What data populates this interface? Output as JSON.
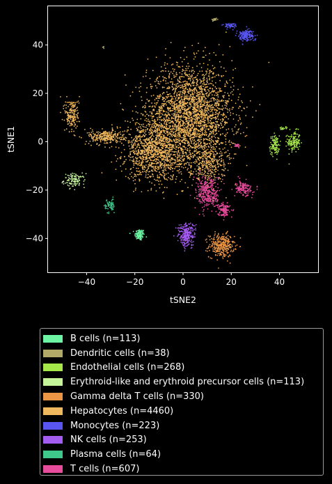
{
  "chart_data": {
    "type": "scatter",
    "xlabel": "tSNE2",
    "ylabel": "tSNE1",
    "xlim": [
      -56,
      56
    ],
    "ylim": [
      -54,
      56
    ],
    "xticks": [
      -40,
      -20,
      0,
      20,
      40
    ],
    "yticks": [
      -40,
      -20,
      0,
      20,
      40
    ],
    "xtick_labels": [
      "−40",
      "−20",
      "0",
      "20",
      "40"
    ],
    "ytick_labels": [
      "−40",
      "−20",
      "0",
      "20",
      "40"
    ],
    "grid": false,
    "legend_position": "below",
    "series": [
      {
        "name": "B cells (n=113)",
        "color": "#6ef5a3",
        "clusters": [
          {
            "cx": -18,
            "cy": -38.5,
            "sx": 1.0,
            "sy": 1.2,
            "n": 113
          }
        ]
      },
      {
        "name": "Dendritic cells (n=38)",
        "color": "#b2a868",
        "clusters": [
          {
            "cx": 13,
            "cy": 50.5,
            "sx": 0.6,
            "sy": 0.4,
            "n": 20
          },
          {
            "cx": -33,
            "cy": 39,
            "sx": 0.3,
            "sy": 0.3,
            "n": 6
          },
          {
            "cx": 2,
            "cy": 0,
            "sx": 14,
            "sy": 14,
            "n": 12
          }
        ]
      },
      {
        "name": "Endothelial cells (n=268)",
        "color": "#a6e84a",
        "clusters": [
          {
            "cx": 46,
            "cy": 0,
            "sx": 1.3,
            "sy": 2.2,
            "n": 140
          },
          {
            "cx": 38,
            "cy": -1.5,
            "sx": 1.0,
            "sy": 2.0,
            "n": 110
          },
          {
            "cx": 41.5,
            "cy": 5.5,
            "sx": 1.0,
            "sy": 0.4,
            "n": 18
          }
        ]
      },
      {
        "name": "Erythroid-like and erythroid precursor cells (n=113)",
        "color": "#c5f59a",
        "clusters": [
          {
            "cx": -45,
            "cy": -16,
            "sx": 2.2,
            "sy": 1.4,
            "n": 113
          }
        ]
      },
      {
        "name": "Gamma delta T cells (n=330)",
        "color": "#eb9545",
        "clusters": [
          {
            "cx": 16,
            "cy": -43,
            "sx": 2.6,
            "sy": 2.4,
            "n": 330
          }
        ]
      },
      {
        "name": "Hepatocytes (n=4460)",
        "color": "#efb85e",
        "clusters": [
          {
            "cx": 3,
            "cy": 11,
            "sx": 9,
            "sy": 10,
            "n": 2600
          },
          {
            "cx": -12,
            "cy": -4,
            "sx": 6,
            "sy": 6,
            "n": 1100
          },
          {
            "cx": -32,
            "cy": 2,
            "sx": 3.5,
            "sy": 1.5,
            "n": 260
          },
          {
            "cx": -46,
            "cy": 11,
            "sx": 1.5,
            "sy": 3.5,
            "n": 180
          },
          {
            "cx": 10,
            "cy": -8,
            "sx": 4,
            "sy": 4,
            "n": 320
          }
        ]
      },
      {
        "name": "Monocytes (n=223)",
        "color": "#5855f0",
        "clusters": [
          {
            "cx": 26,
            "cy": 44,
            "sx": 1.8,
            "sy": 1.2,
            "n": 170
          },
          {
            "cx": 19.5,
            "cy": 48,
            "sx": 1.2,
            "sy": 0.5,
            "n": 53
          }
        ]
      },
      {
        "name": "NK cells (n=253)",
        "color": "#a55cf1",
        "clusters": [
          {
            "cx": 1.5,
            "cy": -38.5,
            "sx": 1.8,
            "sy": 2.4,
            "n": 253
          }
        ]
      },
      {
        "name": "Plasma cells (n=64)",
        "color": "#3ec98a",
        "clusters": [
          {
            "cx": -30.5,
            "cy": -26.5,
            "sx": 1.0,
            "sy": 1.5,
            "n": 64
          }
        ]
      },
      {
        "name": "T cells (n=607)",
        "color": "#e84c9c",
        "clusters": [
          {
            "cx": 10.5,
            "cy": -21,
            "sx": 2.5,
            "sy": 3.5,
            "n": 320
          },
          {
            "cx": 25,
            "cy": -19.5,
            "sx": 1.8,
            "sy": 1.5,
            "n": 140
          },
          {
            "cx": 17,
            "cy": -28,
            "sx": 1.2,
            "sy": 1.5,
            "n": 120
          },
          {
            "cx": 22.5,
            "cy": -1.5,
            "sx": 0.4,
            "sy": 0.4,
            "n": 27
          }
        ]
      }
    ]
  }
}
